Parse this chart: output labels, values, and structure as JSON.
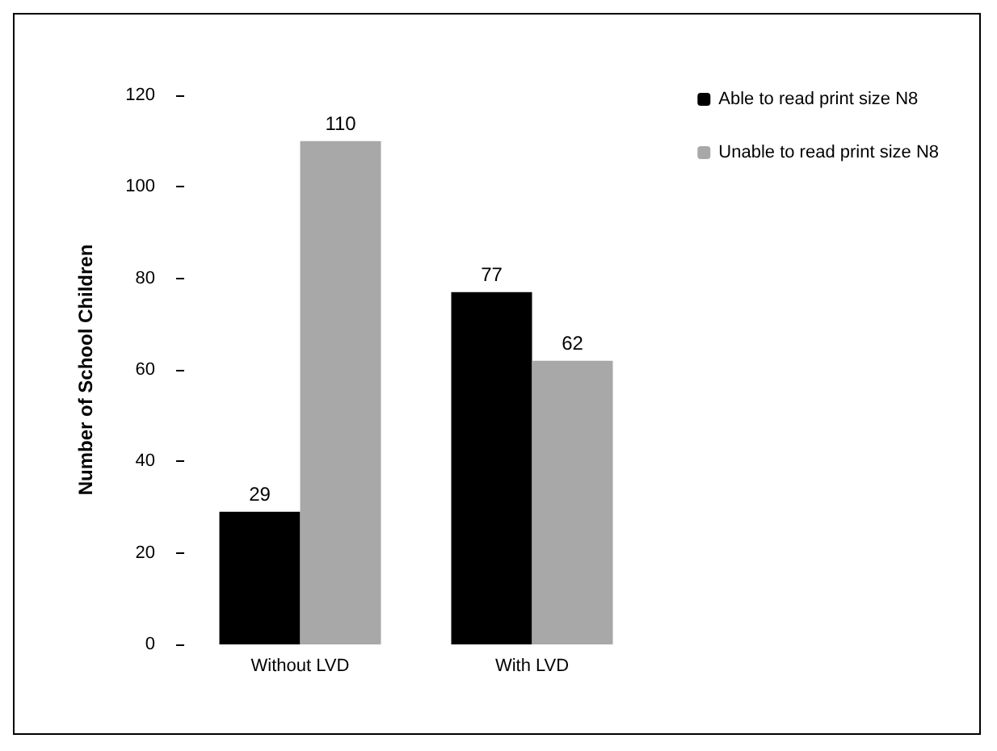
{
  "chart_data": {
    "type": "bar",
    "ylabel": "Number of School Children",
    "categories": [
      "Without LVD",
      "With LVD"
    ],
    "series": [
      {
        "name": "Able to read print size N8",
        "color": "#000000",
        "values": [
          29,
          77
        ]
      },
      {
        "name": "Unable to read print size N8",
        "color": "#a8a8a8",
        "values": [
          110,
          62
        ]
      }
    ],
    "ylim": [
      0,
      120
    ],
    "yticks": [
      0,
      20,
      40,
      60,
      80,
      100,
      120
    ],
    "grid": false,
    "legend": "top right",
    "data_labels": true
  }
}
